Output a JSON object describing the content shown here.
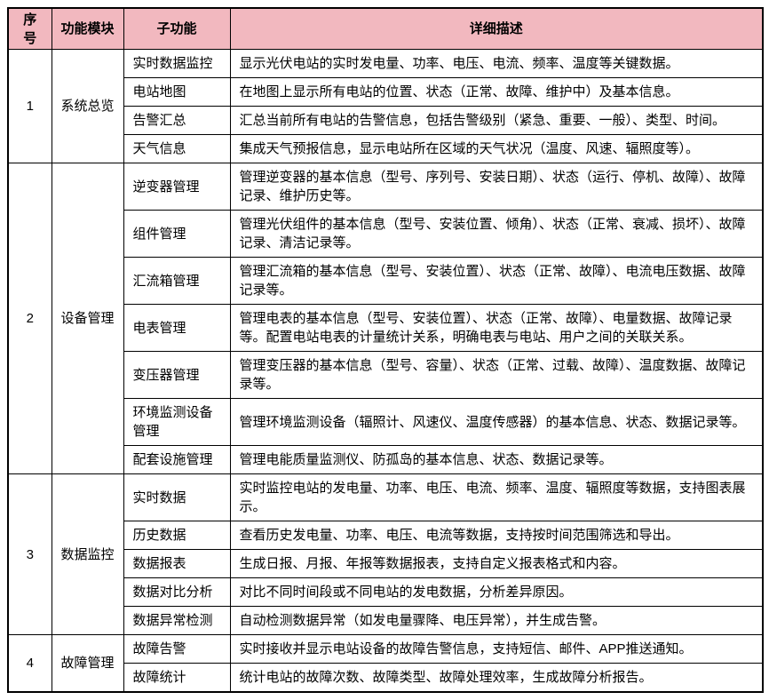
{
  "table": {
    "columns": [
      "序号",
      "功能模块",
      "子功能",
      "详细描述"
    ],
    "header_bg": "#F2B8BF",
    "border_color": "#000000",
    "sections": [
      {
        "no": "1",
        "module": "系统总览",
        "rows": [
          {
            "sub": "实时数据监控",
            "desc": "显示光伏电站的实时发电量、功率、电压、电流、频率、温度等关键数据。"
          },
          {
            "sub": "电站地图",
            "desc": "在地图上显示所有电站的位置、状态（正常、故障、维护中）及基本信息。"
          },
          {
            "sub": "告警汇总",
            "desc": "汇总当前所有电站的告警信息，包括告警级别（紧急、重要、一般）、类型、时间。"
          },
          {
            "sub": "天气信息",
            "desc": "集成天气预报信息，显示电站所在区域的天气状况（温度、风速、辐照度等）。"
          }
        ]
      },
      {
        "no": "2",
        "module": "设备管理",
        "rows": [
          {
            "sub": "逆变器管理",
            "desc": "管理逆变器的基本信息（型号、序列号、安装日期）、状态（运行、停机、故障）、故障记录、维护历史等。"
          },
          {
            "sub": "组件管理",
            "desc": "管理光伏组件的基本信息（型号、安装位置、倾角）、状态（正常、衰减、损坏）、故障记录、清洁记录等。"
          },
          {
            "sub": "汇流箱管理",
            "desc": "管理汇流箱的基本信息（型号、安装位置）、状态（正常、故障）、电流电压数据、故障记录等。"
          },
          {
            "sub": "电表管理",
            "desc": "管理电表的基本信息（型号、安装位置）、状态（正常、故障）、电量数据、故障记录等。配置电站电表的计量统计关系，明确电表与电站、用户之间的关联关系。"
          },
          {
            "sub": "变压器管理",
            "desc": "管理变压器的基本信息（型号、容量）、状态（正常、过载、故障）、温度数据、故障记录等。"
          },
          {
            "sub": "环境监测设备管理",
            "desc": "管理环境监测设备（辐照计、风速仪、温度传感器）的基本信息、状态、数据记录等。"
          },
          {
            "sub": "配套设施管理",
            "desc": "管理电能质量监测仪、防孤岛的基本信息、状态、数据记录等。"
          }
        ]
      },
      {
        "no": "3",
        "module": "数据监控",
        "rows": [
          {
            "sub": "实时数据",
            "desc": "实时监控电站的发电量、功率、电压、电流、频率、温度、辐照度等数据，支持图表展示。"
          },
          {
            "sub": "历史数据",
            "desc": "查看历史发电量、功率、电压、电流等数据，支持按时间范围筛选和导出。"
          },
          {
            "sub": "数据报表",
            "desc": "生成日报、月报、年报等数据报表，支持自定义报表格式和内容。"
          },
          {
            "sub": "数据对比分析",
            "desc": "对比不同时间段或不同电站的发电数据，分析差异原因。"
          },
          {
            "sub": "数据异常检测",
            "desc": "自动检测数据异常（如发电量骤降、电压异常），并生成告警。"
          }
        ]
      },
      {
        "no": "4",
        "module": "故障管理",
        "rows": [
          {
            "sub": "故障告警",
            "desc": "实时接收并显示电站设备的故障告警信息，支持短信、邮件、APP推送通知。"
          },
          {
            "sub": "故障统计",
            "desc": "统计电站的故障次数、故障类型、故障处理效率，生成故障分析报告。"
          }
        ]
      }
    ]
  }
}
